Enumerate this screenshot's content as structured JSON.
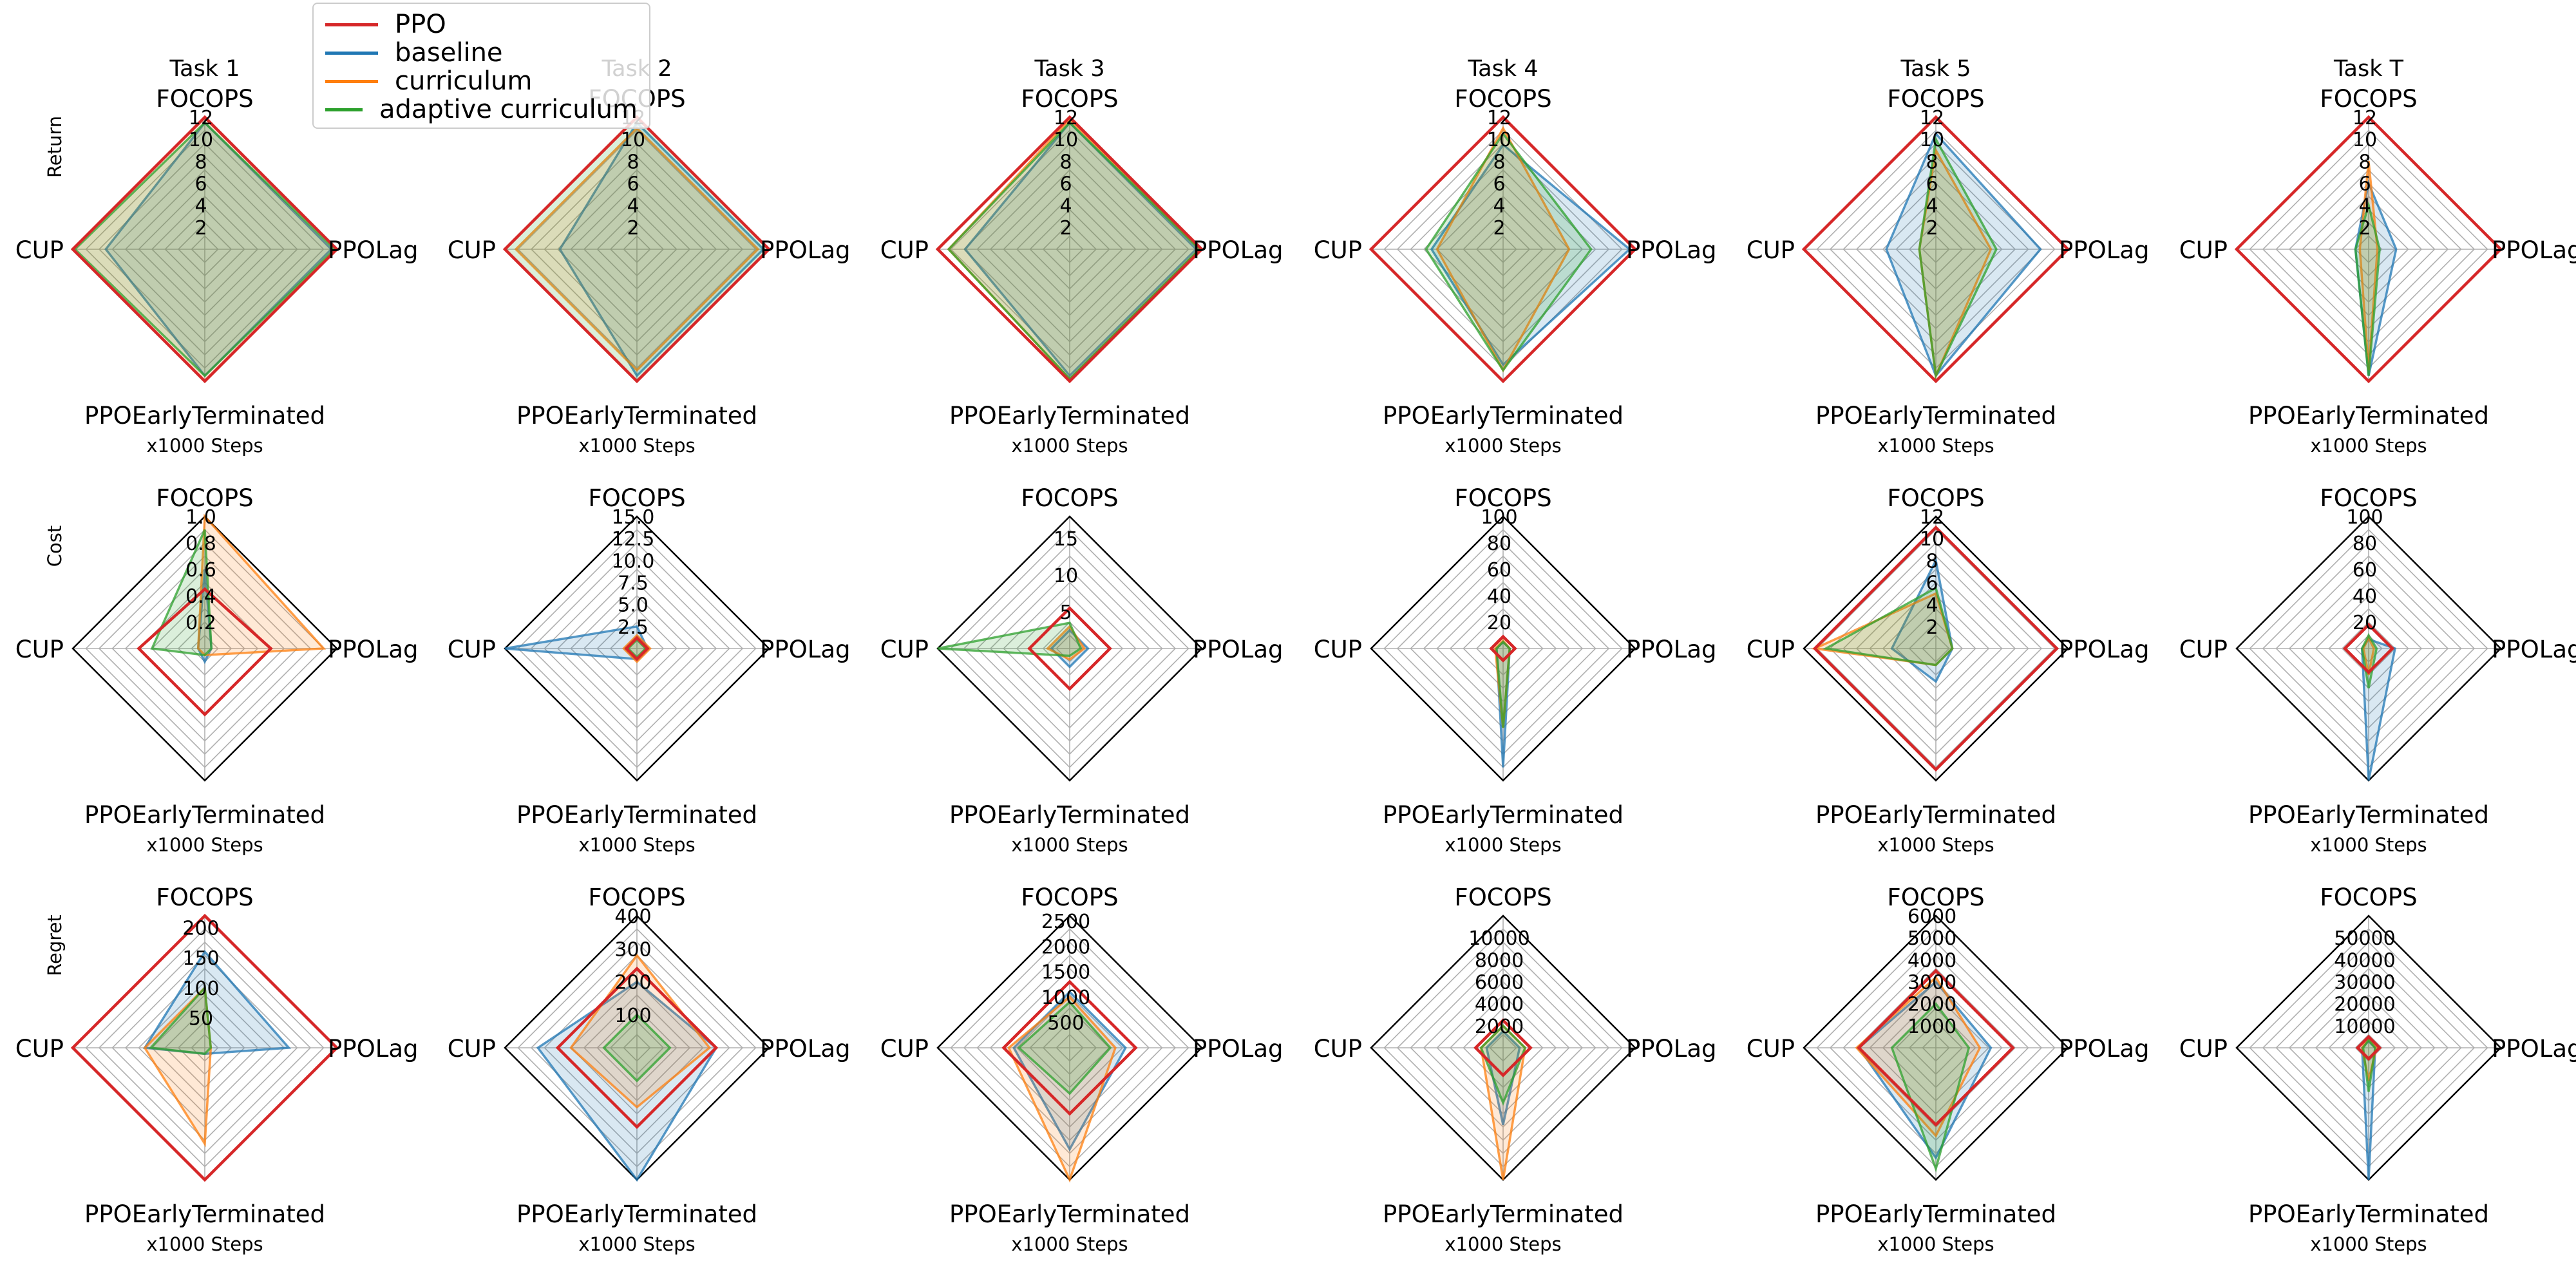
{
  "figure": {
    "tasks": [
      "Task 1",
      "Task 2",
      "Task 3",
      "Task 4",
      "Task 5",
      "Task T"
    ],
    "metrics": [
      "Return",
      "Cost",
      "Regret"
    ],
    "axes": [
      "FOCOPS",
      "PPOLag",
      "PPOEarlyTerminated",
      "CUP"
    ],
    "xlabel": "x1000 Steps"
  },
  "legend": [
    {
      "name": "PPO",
      "color": "#d62728"
    },
    {
      "name": "baseline",
      "color": "#1f77b4"
    },
    {
      "name": "curriculum",
      "color": "#ff7f0e"
    },
    {
      "name": "adaptive curriculum",
      "color": "#2ca02c"
    }
  ],
  "chart_data": [
    {
      "type": "radar",
      "metric": "Return",
      "task": "Task 1",
      "rmax": 12,
      "ticks": [
        "2",
        "4",
        "6",
        "8",
        "10",
        "12"
      ],
      "series": [
        {
          "name": "PPO",
          "values": [
            12,
            12,
            12,
            12
          ]
        },
        {
          "name": "baseline",
          "values": [
            11.5,
            11.5,
            11.5,
            9
          ]
        },
        {
          "name": "curriculum",
          "values": [
            12,
            12,
            12,
            12
          ]
        },
        {
          "name": "adaptive curriculum",
          "values": [
            11.5,
            11.8,
            11.5,
            11.8
          ]
        }
      ]
    },
    {
      "type": "radar",
      "metric": "Return",
      "task": "Task 2",
      "rmax": 12,
      "ticks": [
        "2",
        "4",
        "6",
        "8",
        "10",
        "12"
      ],
      "series": [
        {
          "name": "PPO",
          "values": [
            12,
            12,
            12,
            12
          ]
        },
        {
          "name": "baseline",
          "values": [
            11.5,
            11.5,
            11.5,
            7
          ]
        },
        {
          "name": "curriculum",
          "values": [
            11,
            11,
            11,
            11
          ]
        },
        {
          "name": "adaptive curriculum",
          "values": [
            12,
            12,
            12,
            12
          ]
        }
      ]
    },
    {
      "type": "radar",
      "metric": "Return",
      "task": "Task 3",
      "rmax": 12,
      "ticks": [
        "2",
        "4",
        "6",
        "8",
        "10",
        "12"
      ],
      "series": [
        {
          "name": "PPO",
          "values": [
            12,
            12,
            12,
            12
          ]
        },
        {
          "name": "baseline",
          "values": [
            11.5,
            11.5,
            11.5,
            9.5
          ]
        },
        {
          "name": "curriculum",
          "values": [
            11.8,
            11.8,
            11.8,
            11
          ]
        },
        {
          "name": "adaptive curriculum",
          "values": [
            11.5,
            11.8,
            11.8,
            11
          ]
        }
      ]
    },
    {
      "type": "radar",
      "metric": "Return",
      "task": "Task 4",
      "rmax": 12,
      "ticks": [
        "2",
        "4",
        "6",
        "8",
        "10",
        "12"
      ],
      "series": [
        {
          "name": "PPO",
          "values": [
            12,
            12,
            12,
            12
          ]
        },
        {
          "name": "baseline",
          "values": [
            9.5,
            11.5,
            10.5,
            6.5
          ]
        },
        {
          "name": "curriculum",
          "values": [
            11,
            6,
            11,
            6
          ]
        },
        {
          "name": "adaptive curriculum",
          "values": [
            10.5,
            8,
            11,
            7
          ]
        }
      ]
    },
    {
      "type": "radar",
      "metric": "Return",
      "task": "Task 5",
      "rmax": 12,
      "ticks": [
        "2",
        "4",
        "6",
        "8",
        "10",
        "12"
      ],
      "series": [
        {
          "name": "PPO",
          "values": [
            12,
            12,
            12,
            12
          ]
        },
        {
          "name": "baseline",
          "values": [
            10.5,
            9.5,
            11.5,
            4.5
          ]
        },
        {
          "name": "curriculum",
          "values": [
            9,
            5,
            11.5,
            1.5
          ]
        },
        {
          "name": "adaptive curriculum",
          "values": [
            10,
            5.5,
            11.5,
            1.5
          ]
        }
      ]
    },
    {
      "type": "radar",
      "metric": "Return",
      "task": "Task T",
      "rmax": 12,
      "ticks": [
        "2",
        "4",
        "6",
        "8",
        "10",
        "12"
      ],
      "series": [
        {
          "name": "PPO",
          "values": [
            12,
            12,
            12,
            12
          ]
        },
        {
          "name": "baseline",
          "values": [
            6,
            2.5,
            11.5,
            1.2
          ]
        },
        {
          "name": "curriculum",
          "values": [
            8,
            0.8,
            11,
            0.8
          ]
        },
        {
          "name": "adaptive curriculum",
          "values": [
            4,
            1,
            11.5,
            1.2
          ]
        }
      ]
    },
    {
      "type": "radar",
      "metric": "Cost",
      "task": "Task 1",
      "rmax": 1.0,
      "ticks": [
        "0.2",
        "0.4",
        "0.6",
        "0.8",
        "1.0"
      ],
      "series": [
        {
          "name": "PPO",
          "values": [
            0.45,
            0.5,
            0.5,
            0.5
          ]
        },
        {
          "name": "baseline",
          "values": [
            0.6,
            0.05,
            0.1,
            0.05
          ]
        },
        {
          "name": "curriculum",
          "values": [
            1.0,
            0.9,
            0.05,
            0.05
          ]
        },
        {
          "name": "adaptive curriculum",
          "values": [
            0.9,
            0.05,
            0.05,
            0.4
          ]
        }
      ]
    },
    {
      "type": "radar",
      "metric": "Cost",
      "task": "Task 2",
      "rmax": 15,
      "ticks": [
        "2.5",
        "5.0",
        "7.5",
        "10.0",
        "12.5",
        "15.0"
      ],
      "series": [
        {
          "name": "PPO",
          "values": [
            1.2,
            1.2,
            1.2,
            1.2
          ]
        },
        {
          "name": "baseline",
          "values": [
            2.5,
            1.2,
            1.2,
            15
          ]
        },
        {
          "name": "curriculum",
          "values": [
            1.5,
            1.5,
            1.5,
            1.5
          ]
        },
        {
          "name": "adaptive curriculum",
          "values": [
            1,
            1,
            1,
            1
          ]
        }
      ]
    },
    {
      "type": "radar",
      "metric": "Cost",
      "task": "Task 3",
      "rmax": 18,
      "ticks": [
        "5",
        "10",
        "15"
      ],
      "series": [
        {
          "name": "PPO",
          "values": [
            5.5,
            5.5,
            5.5,
            5.5
          ]
        },
        {
          "name": "baseline",
          "values": [
            2.5,
            2.5,
            2.5,
            2.5
          ]
        },
        {
          "name": "curriculum",
          "values": [
            3,
            2,
            1.5,
            3
          ]
        },
        {
          "name": "adaptive curriculum",
          "values": [
            3.5,
            1.5,
            1,
            18
          ]
        }
      ]
    },
    {
      "type": "radar",
      "metric": "Cost",
      "task": "Task 4",
      "rmax": 100,
      "ticks": [
        "20",
        "40",
        "60",
        "80",
        "100"
      ],
      "series": [
        {
          "name": "PPO",
          "values": [
            9,
            9,
            9,
            9
          ]
        },
        {
          "name": "baseline",
          "values": [
            5,
            5,
            90,
            5
          ]
        },
        {
          "name": "curriculum",
          "values": [
            6,
            5,
            60,
            6
          ]
        },
        {
          "name": "adaptive curriculum",
          "values": [
            5,
            5,
            60,
            5
          ]
        }
      ]
    },
    {
      "type": "radar",
      "metric": "Cost",
      "task": "Task 5",
      "rmax": 12,
      "ticks": [
        "2",
        "4",
        "6",
        "8",
        "10",
        "12"
      ],
      "series": [
        {
          "name": "PPO",
          "values": [
            11,
            11,
            11,
            11
          ]
        },
        {
          "name": "baseline",
          "values": [
            8,
            1.5,
            3,
            4
          ]
        },
        {
          "name": "curriculum",
          "values": [
            5,
            1.5,
            1.5,
            11
          ]
        },
        {
          "name": "adaptive curriculum",
          "values": [
            5.5,
            1.5,
            1.5,
            10
          ]
        }
      ]
    },
    {
      "type": "radar",
      "metric": "Cost",
      "task": "Task T",
      "rmax": 100,
      "ticks": [
        "20",
        "40",
        "60",
        "80",
        "100"
      ],
      "series": [
        {
          "name": "PPO",
          "values": [
            18,
            18,
            18,
            18
          ]
        },
        {
          "name": "baseline",
          "values": [
            7,
            20,
            100,
            5
          ]
        },
        {
          "name": "curriculum",
          "values": [
            8,
            4,
            20,
            4
          ]
        },
        {
          "name": "adaptive curriculum",
          "values": [
            10,
            6,
            30,
            5
          ]
        }
      ]
    },
    {
      "type": "radar",
      "metric": "Regret",
      "task": "Task 1",
      "rmax": 220,
      "ticks": [
        "50",
        "100",
        "150",
        "200"
      ],
      "series": [
        {
          "name": "PPO",
          "values": [
            220,
            220,
            220,
            220
          ]
        },
        {
          "name": "baseline",
          "values": [
            160,
            140,
            10,
            100
          ]
        },
        {
          "name": "curriculum",
          "values": [
            100,
            10,
            160,
            100
          ]
        },
        {
          "name": "adaptive curriculum",
          "values": [
            100,
            10,
            10,
            90
          ]
        }
      ]
    },
    {
      "type": "radar",
      "metric": "Regret",
      "task": "Task 2",
      "rmax": 400,
      "ticks": [
        "100",
        "200",
        "300",
        "400"
      ],
      "series": [
        {
          "name": "PPO",
          "values": [
            240,
            240,
            240,
            240
          ]
        },
        {
          "name": "baseline",
          "values": [
            200,
            240,
            400,
            300
          ]
        },
        {
          "name": "curriculum",
          "values": [
            280,
            220,
            180,
            200
          ]
        },
        {
          "name": "adaptive curriculum",
          "values": [
            100,
            100,
            100,
            100
          ]
        }
      ]
    },
    {
      "type": "radar",
      "metric": "Regret",
      "task": "Task 3",
      "rmax": 2600,
      "ticks": [
        "500",
        "1000",
        "1500",
        "2000",
        "2500"
      ],
      "series": [
        {
          "name": "PPO",
          "values": [
            1300,
            1300,
            1300,
            1300
          ]
        },
        {
          "name": "baseline",
          "values": [
            1100,
            1100,
            2000,
            1100
          ]
        },
        {
          "name": "curriculum",
          "values": [
            1000,
            900,
            2600,
            1200
          ]
        },
        {
          "name": "adaptive curriculum",
          "values": [
            900,
            800,
            900,
            1000
          ]
        }
      ]
    },
    {
      "type": "radar",
      "metric": "Regret",
      "task": "Task 4",
      "rmax": 12000,
      "ticks": [
        "2000",
        "4000",
        "6000",
        "8000",
        "10000"
      ],
      "series": [
        {
          "name": "PPO",
          "values": [
            2500,
            2500,
            2500,
            2500
          ]
        },
        {
          "name": "baseline",
          "values": [
            1500,
            1500,
            7000,
            1500
          ]
        },
        {
          "name": "curriculum",
          "values": [
            2000,
            2000,
            12000,
            2000
          ]
        },
        {
          "name": "adaptive curriculum",
          "values": [
            2000,
            2000,
            5000,
            2000
          ]
        }
      ]
    },
    {
      "type": "radar",
      "metric": "Regret",
      "task": "Task 5",
      "rmax": 6000,
      "ticks": [
        "1000",
        "2000",
        "3000",
        "4000",
        "5000",
        "6000"
      ],
      "series": [
        {
          "name": "PPO",
          "values": [
            3500,
            3500,
            3500,
            3500
          ]
        },
        {
          "name": "baseline",
          "values": [
            3000,
            2500,
            5000,
            3500
          ]
        },
        {
          "name": "curriculum",
          "values": [
            3200,
            2000,
            4000,
            3600
          ]
        },
        {
          "name": "adaptive curriculum",
          "values": [
            2000,
            1500,
            5500,
            2000
          ]
        }
      ]
    },
    {
      "type": "radar",
      "metric": "Regret",
      "task": "Task T",
      "rmax": 60000,
      "ticks": [
        "10000",
        "20000",
        "30000",
        "40000",
        "50000"
      ],
      "series": [
        {
          "name": "PPO",
          "values": [
            5000,
            5000,
            5000,
            5000
          ]
        },
        {
          "name": "baseline",
          "values": [
            3000,
            3000,
            60000,
            3000
          ]
        },
        {
          "name": "curriculum",
          "values": [
            4000,
            3500,
            15000,
            3000
          ]
        },
        {
          "name": "adaptive curriculum",
          "values": [
            3500,
            3000,
            20000,
            2500
          ]
        }
      ]
    }
  ]
}
